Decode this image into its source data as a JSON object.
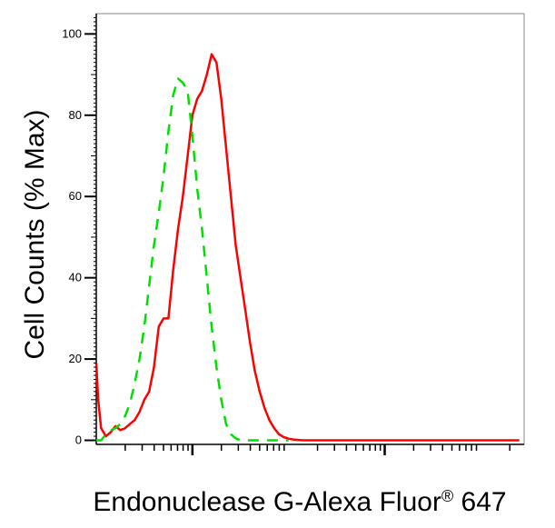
{
  "chart_data": {
    "type": "line",
    "title": "",
    "ylabel": "Cell Counts (% Max)",
    "xlabel": {
      "main": "Endonuclease G-Alexa Fluor",
      "superscript": "®",
      "suffix": " 647"
    },
    "x_scale": "log",
    "xlim": [
      -1.0,
      3.45
    ],
    "ylim": [
      -1,
      105
    ],
    "y_ticks": [
      0,
      20,
      40,
      60,
      80,
      100
    ],
    "y_tick_labels": [
      "0",
      "20",
      "40",
      "60",
      "80",
      "100"
    ],
    "x_major_ticks": [
      0,
      2
    ],
    "x_tick_labels": [],
    "grid": false,
    "legend": "none",
    "series": [
      {
        "color": "#ff0000",
        "dash": "solid",
        "x": [
          -1.0,
          -0.98,
          -0.95,
          -0.9,
          -0.85,
          -0.8,
          -0.75,
          -0.7,
          -0.65,
          -0.6,
          -0.55,
          -0.5,
          -0.45,
          -0.4,
          -0.35,
          -0.3,
          -0.25,
          -0.2,
          -0.15,
          -0.1,
          -0.05,
          0.0,
          0.05,
          0.1,
          0.15,
          0.2,
          0.25,
          0.3,
          0.35,
          0.4,
          0.45,
          0.5,
          0.55,
          0.6,
          0.65,
          0.7,
          0.75,
          0.8,
          0.85,
          0.9,
          0.95,
          1.0,
          1.05,
          1.1,
          1.15,
          1.2,
          1.25,
          1.3,
          1.35,
          1.4,
          1.5,
          1.6,
          1.7,
          1.8,
          2.0,
          2.3,
          2.6,
          3.0,
          3.4
        ],
        "y": [
          19,
          10,
          3,
          1,
          2,
          3.5,
          2.5,
          3,
          4,
          5,
          7,
          10,
          12,
          18,
          28,
          30,
          30,
          42,
          52,
          60,
          70,
          80,
          84,
          86,
          90,
          95,
          93,
          84,
          72,
          60,
          48,
          40,
          32,
          24,
          17,
          12,
          8,
          5,
          3,
          1.5,
          0.8,
          0.4,
          0.2,
          0.1,
          0,
          0,
          0,
          0,
          0,
          0,
          0,
          0,
          0,
          0,
          0,
          0,
          0,
          0,
          0
        ]
      },
      {
        "color": "#00e000",
        "dash": "dashed",
        "x": [
          -1.0,
          -0.95,
          -0.9,
          -0.85,
          -0.8,
          -0.75,
          -0.7,
          -0.65,
          -0.6,
          -0.55,
          -0.5,
          -0.45,
          -0.4,
          -0.35,
          -0.3,
          -0.25,
          -0.2,
          -0.15,
          -0.1,
          -0.05,
          0.0,
          0.05,
          0.1,
          0.15,
          0.2,
          0.25,
          0.3,
          0.35,
          0.4,
          0.45,
          0.5,
          0.55,
          0.6,
          0.7,
          0.8,
          0.9,
          1.0
        ],
        "y": [
          0,
          0,
          1.5,
          2.5,
          3,
          4,
          6,
          9,
          14,
          20,
          28,
          38,
          48,
          56,
          65,
          76,
          85,
          89,
          88,
          86,
          75,
          62,
          52,
          40,
          28,
          18,
          10,
          4,
          1.5,
          0.5,
          0,
          0,
          0,
          0,
          0,
          0,
          0
        ]
      }
    ]
  }
}
